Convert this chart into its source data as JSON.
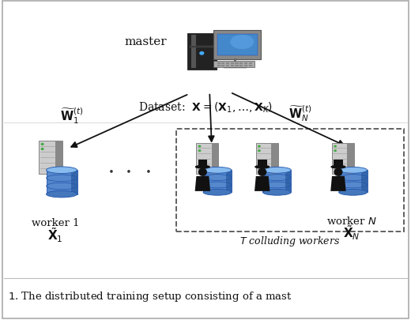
{
  "bg_color": "#ffffff",
  "dataset_label": "Dataset: $\\mathbf{X} = (\\mathbf{X}_1, \\ldots, \\mathbf{X}_K)$",
  "w1_label": "$\\widetilde{\\mathbf{W}}_1^{(t)}$",
  "wN_label": "$\\widetilde{\\mathbf{W}}_N^{(t)}$",
  "worker1_label": "worker 1",
  "workerN_label": "worker $N$",
  "x1_label": "$\\tilde{\\mathbf{X}}_1$",
  "xN_label": "$\\tilde{\\mathbf{X}}_N$",
  "colluding_label": "$T$ colluding workers",
  "master_label": "master",
  "caption": "1.  The distributed training setup consisting of a mast"
}
